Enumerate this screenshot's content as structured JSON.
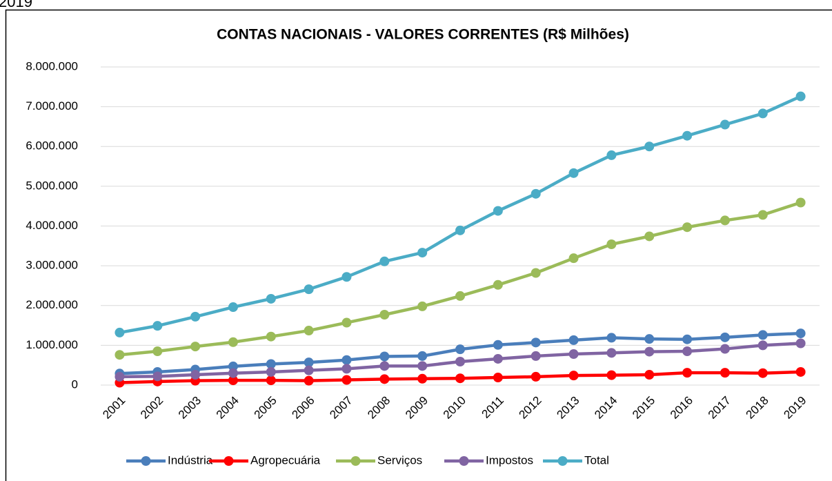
{
  "caption": "2019",
  "chart_data": {
    "type": "line",
    "title": "CONTAS NACIONAIS - VALORES CORRENTES (R$ Milhões)",
    "x": [
      "2001",
      "2002",
      "2003",
      "2004",
      "2005",
      "2006",
      "2007",
      "2008",
      "2009",
      "2010",
      "2011",
      "2012",
      "2013",
      "2014",
      "2015",
      "2016",
      "2017",
      "2018",
      "2019"
    ],
    "series": [
      {
        "name": "Indústria",
        "color": "#4a7ebb",
        "values": [
          290000,
          330000,
          390000,
          470000,
          530000,
          570000,
          630000,
          720000,
          730000,
          900000,
          1010000,
          1070000,
          1130000,
          1190000,
          1160000,
          1150000,
          1200000,
          1260000,
          1300000
        ]
      },
      {
        "name": "Agropecuária",
        "color": "#ff0000",
        "values": [
          60000,
          90000,
          110000,
          120000,
          120000,
          110000,
          130000,
          150000,
          160000,
          170000,
          190000,
          210000,
          240000,
          250000,
          260000,
          310000,
          310000,
          300000,
          330000
        ]
      },
      {
        "name": "Serviços",
        "color": "#9bbb59",
        "values": [
          760000,
          850000,
          970000,
          1080000,
          1220000,
          1370000,
          1570000,
          1770000,
          1980000,
          2240000,
          2520000,
          2820000,
          3190000,
          3540000,
          3740000,
          3970000,
          4140000,
          4280000,
          4590000
        ]
      },
      {
        "name": "Impostos",
        "color": "#8064a2",
        "values": [
          210000,
          220000,
          260000,
          300000,
          330000,
          370000,
          410000,
          480000,
          480000,
          590000,
          660000,
          730000,
          780000,
          810000,
          840000,
          850000,
          910000,
          1000000,
          1050000
        ]
      },
      {
        "name": "Total",
        "color": "#4bacc6",
        "values": [
          1320000,
          1490000,
          1720000,
          1960000,
          2170000,
          2410000,
          2720000,
          3110000,
          3330000,
          3890000,
          4380000,
          4810000,
          5330000,
          5780000,
          6000000,
          6270000,
          6550000,
          6830000,
          7260000
        ]
      }
    ],
    "ylim": [
      0,
      8000000
    ],
    "yticks": [
      0,
      {
        "value": 1000000,
        "label": "1.000.000"
      },
      {
        "value": 2000000,
        "label": "2.000.000"
      },
      {
        "value": 3000000,
        "label": "3.000.000"
      },
      {
        "value": 4000000,
        "label": "4.000.000"
      },
      {
        "value": 5000000,
        "label": "5.000.000"
      },
      {
        "value": 6000000,
        "label": "6.000.000"
      },
      {
        "value": 7000000,
        "label": "7.000.000"
      },
      {
        "value": 8000000,
        "label": "8.000.000"
      }
    ],
    "grid": true,
    "legend": "bottom"
  }
}
